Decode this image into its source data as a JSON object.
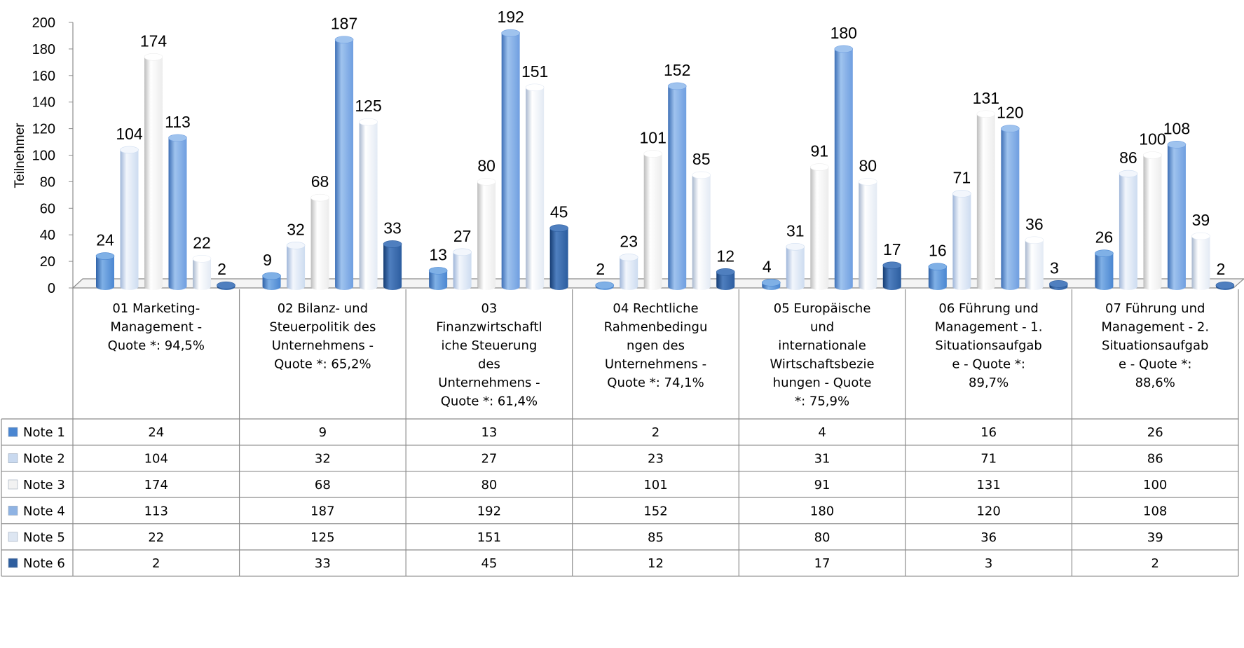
{
  "chart_data": {
    "type": "bar",
    "ylabel": "Teilnehmer",
    "ylim": [
      0,
      200
    ],
    "yticks": [
      0,
      20,
      40,
      60,
      80,
      100,
      120,
      140,
      160,
      180,
      200
    ],
    "categories": [
      [
        "01 Marketing-",
        "Management  -",
        "Quote *: 94,5%"
      ],
      [
        "02 Bilanz- und",
        "Steuerpolitik des",
        "Unternehmens  -",
        "Quote *: 65,2%"
      ],
      [
        "03",
        "Finanzwirtschaftl",
        "iche Steuerung",
        "des",
        "Unternehmens  -",
        "Quote *: 61,4%"
      ],
      [
        "04 Rechtliche",
        "Rahmenbedingu",
        "ngen des",
        "Unternehmens  -",
        "Quote *: 74,1%"
      ],
      [
        "05 Europäische",
        "und",
        "internationale",
        "Wirtschaftsbezie",
        "hungen  - Quote",
        "*: 75,9%"
      ],
      [
        "06 Führung und",
        "Management - 1.",
        "Situationsaufgab",
        "e  - Quote *:",
        "89,7%"
      ],
      [
        "07 Führung und",
        "Management - 2.",
        "Situationsaufgab",
        "e  - Quote *:",
        "88,6%"
      ]
    ],
    "series": [
      {
        "name": "Note 1",
        "values": [
          24,
          9,
          13,
          2,
          4,
          16,
          26
        ]
      },
      {
        "name": "Note 2",
        "values": [
          104,
          32,
          27,
          23,
          31,
          71,
          86
        ]
      },
      {
        "name": "Note 3",
        "values": [
          174,
          68,
          80,
          101,
          91,
          131,
          100
        ]
      },
      {
        "name": "Note 4",
        "values": [
          113,
          187,
          192,
          152,
          180,
          120,
          108
        ]
      },
      {
        "name": "Note 5",
        "values": [
          22,
          125,
          151,
          85,
          80,
          36,
          39
        ]
      },
      {
        "name": "Note 6",
        "values": [
          2,
          33,
          45,
          12,
          17,
          3,
          2
        ]
      }
    ],
    "colors": {
      "Note 1": {
        "light": "#7fb0e6",
        "mid": "#4a86d1",
        "dark": "#2f62a8",
        "legend": "#4a86d1"
      },
      "Note 2": {
        "light": "#f2f6fc",
        "mid": "#cddcf0",
        "dark": "#9fb6d9",
        "legend": "#c9d9ef"
      },
      "Note 3": {
        "light": "#ffffff",
        "mid": "#ececec",
        "dark": "#bdbdbd",
        "legend": "#f2f2f2"
      },
      "Note 4": {
        "light": "#9fc3ee",
        "mid": "#6f9ee0",
        "dark": "#3d6fb6",
        "legend": "#8fb3e3"
      },
      "Note 5": {
        "light": "#ffffff",
        "mid": "#e3eaf4",
        "dark": "#a9b8cf",
        "legend": "#dde6f2"
      },
      "Note 6": {
        "light": "#4f7fbf",
        "mid": "#2c5d9f",
        "dark": "#163d73",
        "legend": "#2f5e9e"
      }
    },
    "grid": false,
    "legend": "table-left",
    "data_table": true
  }
}
